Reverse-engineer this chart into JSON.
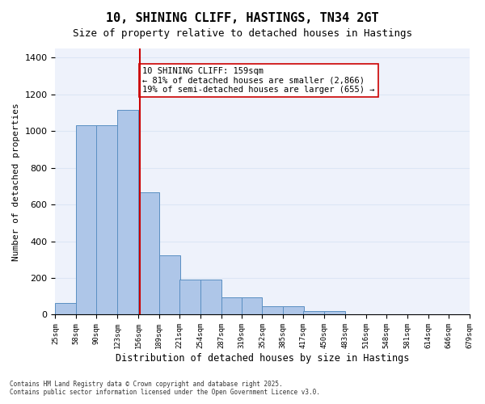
{
  "title_line1": "10, SHINING CLIFF, HASTINGS, TN34 2GT",
  "title_line2": "Size of property relative to detached houses in Hastings",
  "xlabel": "Distribution of detached houses by size in Hastings",
  "ylabel": "Number of detached properties",
  "footnote": "Contains HM Land Registry data © Crown copyright and database right 2025.\nContains public sector information licensed under the Open Government Licence v3.0.",
  "bar_left_edges": [
    25,
    58,
    90,
    123,
    156,
    189,
    221,
    254,
    287,
    319,
    352,
    385,
    417,
    450,
    483,
    516,
    548,
    581,
    614,
    646
  ],
  "bar_heights": [
    65,
    1030,
    1030,
    1115,
    665,
    325,
    190,
    190,
    95,
    95,
    48,
    48,
    20,
    20,
    0,
    0,
    0,
    0,
    0,
    0
  ],
  "bin_width": 33,
  "bar_color": "#aec6e8",
  "bar_edge_color": "#5a8fc2",
  "grid_color": "#dce6f5",
  "bg_color": "#eef2fb",
  "vline_x": 159,
  "vline_color": "#cc0000",
  "annotation_text": "10 SHINING CLIFF: 159sqm\n← 81% of detached houses are smaller (2,866)\n19% of semi-detached houses are larger (655) →",
  "annotation_box_color": "#ffffff",
  "annotation_box_edge": "#cc0000",
  "ylim": [
    0,
    1450
  ],
  "tick_labels": [
    "25sqm",
    "58sqm",
    "90sqm",
    "123sqm",
    "156sqm",
    "189sqm",
    "221sqm",
    "254sqm",
    "287sqm",
    "319sqm",
    "352sqm",
    "385sqm",
    "417sqm",
    "450sqm",
    "483sqm",
    "516sqm",
    "548sqm",
    "581sqm",
    "614sqm",
    "646sqm",
    "679sqm"
  ]
}
